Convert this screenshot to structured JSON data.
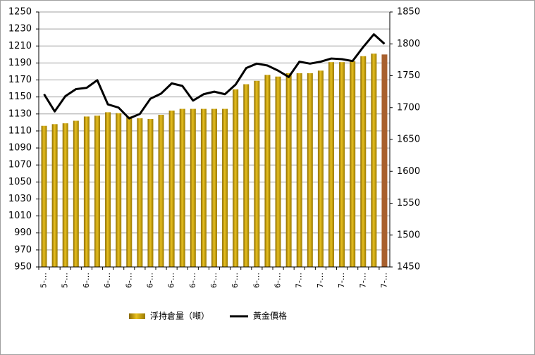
{
  "chart_data": {
    "type": "bar_line",
    "categories": [
      "5-…",
      null,
      "5-…",
      null,
      "6-…",
      null,
      "6-…",
      null,
      "6-…",
      null,
      "6-…",
      null,
      "6-…",
      null,
      "6-…",
      null,
      "6-…",
      null,
      "6-…",
      null,
      "6-…",
      null,
      "6-…",
      null,
      "7-…",
      null,
      "7-…",
      null,
      "7-…",
      null,
      "7-…",
      null,
      "7-…"
    ],
    "series": [
      {
        "name": "浮持倉量（噸）",
        "type": "bar",
        "axis": "y",
        "color": "#c9a206",
        "colors": [
          "#c9a206",
          "#c9a206",
          "#c9a206",
          "#c9a206",
          "#c9a206",
          "#c9a206",
          "#c9a206",
          "#c9a206",
          "#c9a206",
          "#c9a206",
          "#c9a206",
          "#c9a206",
          "#c9a206",
          "#c9a206",
          "#c9a206",
          "#c9a206",
          "#c9a206",
          "#c9a206",
          "#c9a206",
          "#c9a206",
          "#c9a206",
          "#c9a206",
          "#c9a206",
          "#c9a206",
          "#c9a206",
          "#c9a206",
          "#c9a206",
          "#c9a206",
          "#c9a206",
          "#c9a206",
          "#c9a206",
          "#c9a206",
          "#a8602e"
        ],
        "values": [
          1116,
          1118,
          1119,
          1122,
          1127,
          1128,
          1132,
          1131,
          1127,
          1125,
          1124,
          1129,
          1134,
          1136,
          1136,
          1136,
          1136,
          1136,
          1159,
          1165,
          1169,
          1176,
          1174,
          1178,
          1178,
          1178,
          1181,
          1191,
          1191,
          1192,
          1198,
          1201,
          1200
        ]
      },
      {
        "name": "黃金價格",
        "type": "line",
        "axis": "y2",
        "color": "#000000",
        "values": [
          1721,
          1694,
          1718,
          1729,
          1731,
          1743,
          1705,
          1700,
          1683,
          1690,
          1714,
          1722,
          1738,
          1734,
          1711,
          1721,
          1725,
          1721,
          1736,
          1762,
          1769,
          1766,
          1758,
          1748,
          1772,
          1769,
          1772,
          1777,
          1776,
          1773,
          1795,
          1815,
          1800
        ]
      }
    ],
    "ylim": [
      950,
      1250
    ],
    "yticks": [
      950,
      970,
      990,
      1010,
      1030,
      1050,
      1070,
      1090,
      1110,
      1130,
      1150,
      1170,
      1190,
      1210,
      1230,
      1250
    ],
    "y2lim": [
      1450,
      1850
    ],
    "y2ticks": [
      1450,
      1500,
      1550,
      1600,
      1650,
      1700,
      1750,
      1800,
      1850
    ],
    "grid": true,
    "legend": "bottom"
  }
}
